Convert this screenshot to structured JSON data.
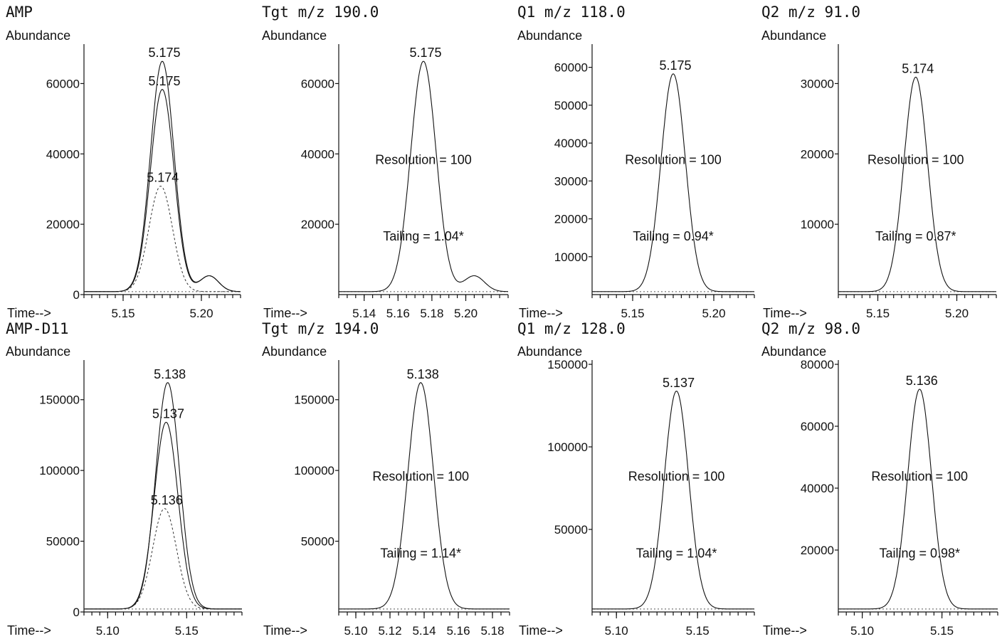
{
  "chart_data": [
    {
      "type": "line",
      "title": "AMP",
      "ylabel": "Abundance",
      "xlabel": "Time-->",
      "xlim": [
        5.125,
        5.225
      ],
      "ylim": [
        0,
        70000
      ],
      "xticks": [
        5.15,
        5.2
      ],
      "xtick_labels": [
        "5.15",
        "5.20"
      ],
      "yticks": [
        0,
        20000,
        40000,
        60000
      ],
      "ytick_labels": [
        "0",
        "20000",
        "40000",
        "60000"
      ],
      "series": [
        {
          "style": "solid",
          "peak_x": 5.175,
          "peak_y": 65500,
          "label": "5.175"
        },
        {
          "style": "solid",
          "peak_x": 5.175,
          "peak_y": 57500,
          "label": "5.175"
        },
        {
          "style": "dotted",
          "peak_x": 5.174,
          "peak_y": 30000,
          "label": "5.174"
        }
      ],
      "minor_peak": {
        "x": 5.205,
        "y": 4500
      },
      "annotations": []
    },
    {
      "type": "line",
      "title": "Tgt m/z 190.0",
      "ylabel": "Abundance",
      "xlabel": "Time-->",
      "xlim": [
        5.125,
        5.225
      ],
      "ylim": [
        0,
        70000
      ],
      "xticks": [
        5.14,
        5.16,
        5.18,
        5.2
      ],
      "xtick_labels": [
        "5.14",
        "5.16",
        "5.18",
        "5.20"
      ],
      "yticks": [
        20000,
        40000,
        60000
      ],
      "ytick_labels": [
        "20000",
        "40000",
        "60000"
      ],
      "series": [
        {
          "style": "solid",
          "peak_x": 5.175,
          "peak_y": 65500,
          "label": "5.175"
        }
      ],
      "minor_peak": {
        "x": 5.205,
        "y": 4500
      },
      "annotations": [
        "Resolution = 100",
        "Tailing = 1.04*"
      ]
    },
    {
      "type": "line",
      "title": "Q1 m/z 118.0",
      "ylabel": "Abundance",
      "xlabel": "Time-->",
      "xlim": [
        5.125,
        5.225
      ],
      "ylim": [
        0,
        65000
      ],
      "xticks": [
        5.15,
        5.2
      ],
      "xtick_labels": [
        "5.15",
        "5.20"
      ],
      "yticks": [
        10000,
        20000,
        30000,
        40000,
        50000,
        60000
      ],
      "ytick_labels": [
        "10000",
        "20000",
        "30000",
        "40000",
        "50000",
        "60000"
      ],
      "series": [
        {
          "style": "solid",
          "peak_x": 5.175,
          "peak_y": 57500,
          "label": "5.175"
        }
      ],
      "annotations": [
        "Resolution = 100",
        "Tailing = 0.94*"
      ]
    },
    {
      "type": "line",
      "title": "Q2 m/z 91.0",
      "ylabel": "Abundance",
      "xlabel": "Time-->",
      "xlim": [
        5.125,
        5.225
      ],
      "ylim": [
        0,
        35000
      ],
      "xticks": [
        5.15,
        5.2
      ],
      "xtick_labels": [
        "5.15",
        "5.20"
      ],
      "yticks": [
        10000,
        20000,
        30000
      ],
      "ytick_labels": [
        "10000",
        "20000",
        "30000"
      ],
      "series": [
        {
          "style": "solid",
          "peak_x": 5.174,
          "peak_y": 30500,
          "label": "5.174"
        }
      ],
      "annotations": [
        "Resolution = 100",
        "Tailing = 0.87*"
      ]
    },
    {
      "type": "line",
      "title": "AMP-D11",
      "ylabel": "Abundance",
      "xlabel": "Time-->",
      "xlim": [
        5.085,
        5.185
      ],
      "ylim": [
        0,
        175000
      ],
      "xticks": [
        5.1,
        5.15
      ],
      "xtick_labels": [
        "5.10",
        "5.15"
      ],
      "yticks": [
        0,
        50000,
        100000,
        150000
      ],
      "ytick_labels": [
        "0",
        "50000",
        "100000",
        "150000"
      ],
      "series": [
        {
          "style": "solid",
          "peak_x": 5.138,
          "peak_y": 160000,
          "label": "5.138"
        },
        {
          "style": "solid",
          "peak_x": 5.137,
          "peak_y": 132000,
          "label": "5.137"
        },
        {
          "style": "dotted",
          "peak_x": 5.136,
          "peak_y": 71000,
          "label": "5.136"
        }
      ],
      "annotations": []
    },
    {
      "type": "line",
      "title": "Tgt m/z 194.0",
      "ylabel": "Abundance",
      "xlabel": "Time-->",
      "xlim": [
        5.09,
        5.19
      ],
      "ylim": [
        0,
        175000
      ],
      "xticks": [
        5.1,
        5.12,
        5.14,
        5.16,
        5.18
      ],
      "xtick_labels": [
        "5.10",
        "5.12",
        "5.14",
        "5.16",
        "5.18"
      ],
      "yticks": [
        50000,
        100000,
        150000
      ],
      "ytick_labels": [
        "50000",
        "100000",
        "150000"
      ],
      "series": [
        {
          "style": "solid",
          "peak_x": 5.138,
          "peak_y": 160000,
          "label": "5.138"
        }
      ],
      "annotations": [
        "Resolution = 100",
        "Tailing = 1.14*"
      ]
    },
    {
      "type": "line",
      "title": "Q1 m/z 128.0",
      "ylabel": "Abundance",
      "xlabel": "Time-->",
      "xlim": [
        5.085,
        5.185
      ],
      "ylim": [
        0,
        150000
      ],
      "xticks": [
        5.1,
        5.15
      ],
      "xtick_labels": [
        "5.10",
        "5.15"
      ],
      "yticks": [
        50000,
        100000,
        150000
      ],
      "ytick_labels": [
        "50000",
        "100000",
        "150000"
      ],
      "series": [
        {
          "style": "solid",
          "peak_x": 5.137,
          "peak_y": 132000,
          "label": "5.137"
        }
      ],
      "annotations": [
        "Resolution = 100",
        "Tailing = 1.04*"
      ]
    },
    {
      "type": "line",
      "title": "Q2 m/z 98.0",
      "ylabel": "Abundance",
      "xlabel": "Time-->",
      "xlim": [
        5.085,
        5.185
      ],
      "ylim": [
        0,
        80000
      ],
      "xticks": [
        5.1,
        5.15
      ],
      "xtick_labels": [
        "5.10",
        "5.15"
      ],
      "yticks": [
        20000,
        40000,
        60000,
        80000
      ],
      "ytick_labels": [
        "20000",
        "40000",
        "60000",
        "80000"
      ],
      "series": [
        {
          "style": "solid",
          "peak_x": 5.136,
          "peak_y": 71000,
          "label": "5.136"
        }
      ],
      "annotations": [
        "Resolution = 100",
        "Tailing = 0.98*"
      ]
    }
  ]
}
